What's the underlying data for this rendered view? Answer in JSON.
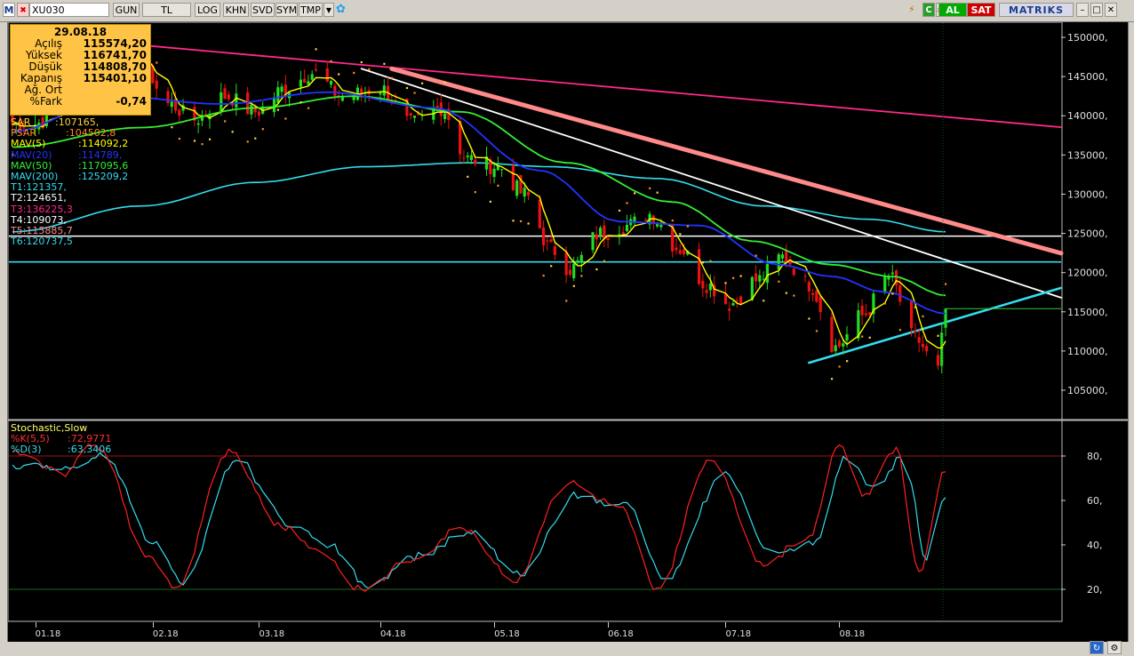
{
  "toolbar": {
    "logo": "M",
    "symbol": "XU030",
    "buttons": [
      "GUN",
      "TL",
      "LOG",
      "KHN",
      "SVD",
      "SYM",
      "TMP"
    ],
    "al": "AL",
    "sat": "SAT",
    "brand": "MATRIKS",
    "colors": {
      "al": "#00aa00",
      "sat": "#cc0000"
    }
  },
  "info": {
    "date": "29.08.18",
    "rows": [
      {
        "label": "Açılış",
        "value": "115574,20"
      },
      {
        "label": "Yüksek",
        "value": "116741,70"
      },
      {
        "label": "Düşük",
        "value": "114808,70"
      },
      {
        "label": "Kapanış",
        "value": "115401,10"
      },
      {
        "label": "Ağ. Ort",
        "value": ""
      },
      {
        "label": "%Fark",
        "value": "-0,74"
      }
    ]
  },
  "legend": [
    {
      "name": "SAR",
      "value": ":107165,",
      "color": "#ffd23f"
    },
    {
      "name": "PSAR",
      "value": ":104502,8",
      "color": "#ff8c1a"
    },
    {
      "name": "MAV(5)",
      "value": ":114092,2",
      "color": "#ffff00"
    },
    {
      "name": "MAV(20)",
      "value": ":114789,",
      "color": "#2233ff"
    },
    {
      "name": "MAV(50)",
      "value": ":117095,6",
      "color": "#33ee33"
    },
    {
      "name": "MAV(200)",
      "value": ":125209,2",
      "color": "#33ddee"
    },
    {
      "name": "T1",
      "value": ":121357,",
      "color": "#33ddee"
    },
    {
      "name": "T2",
      "value": ":124651,",
      "color": "#ffffff"
    },
    {
      "name": "T3",
      "value": ":136225,3",
      "color": "#ff2a8a"
    },
    {
      "name": "T4",
      "value": ":109073,",
      "color": "#ffffff"
    },
    {
      "name": "T5",
      "value": ":115885,7",
      "color": "#ff8a8a"
    },
    {
      "name": "T6",
      "value": ":120737,5",
      "color": "#33ddee"
    }
  ],
  "stoch_legend": {
    "title": "Stochastic,Slow",
    "k": {
      "name": "%K(5,5)",
      "value": ":72,9771",
      "color": "#ff2020"
    },
    "d": {
      "name": "%D(3)",
      "value": ":63,3406",
      "color": "#33ddee"
    }
  },
  "chart_data": [
    {
      "type": "candlestick",
      "title": "XU030",
      "y_ticks": [
        "150000,",
        "145000,",
        "140000,",
        "135000,",
        "130000,",
        "125000,",
        "120000,",
        "115000,",
        "110000,",
        "105000,"
      ],
      "y_values": [
        150000,
        145000,
        140000,
        135000,
        130000,
        125000,
        120000,
        115000,
        110000,
        105000
      ],
      "x_ticks": [
        "01.18",
        "02.18",
        "03.18",
        "04.18",
        "05.18",
        "06.18",
        "07.18",
        "08.18"
      ],
      "last_close": 115401.1,
      "horizontal_lines": [
        {
          "name": "T2",
          "y": 124651,
          "color": "#ffffff"
        },
        {
          "name": "T1",
          "y": 121357,
          "color": "#33ddee"
        }
      ],
      "series_anchors": {
        "close": [
          [
            "2018-01-01",
            139000
          ],
          [
            "2018-01-10",
            142000
          ],
          [
            "2018-01-20",
            145500
          ],
          [
            "2018-01-29",
            147000
          ],
          [
            "2018-02-05",
            141500
          ],
          [
            "2018-02-12",
            139500
          ],
          [
            "2018-02-20",
            142500
          ],
          [
            "2018-02-28",
            140500
          ],
          [
            "2018-03-08",
            143500
          ],
          [
            "2018-03-15",
            145500
          ],
          [
            "2018-03-23",
            142500
          ],
          [
            "2018-04-02",
            143500
          ],
          [
            "2018-04-10",
            139000
          ],
          [
            "2018-04-18",
            141000
          ],
          [
            "2018-04-25",
            134500
          ],
          [
            "2018-05-03",
            133500
          ],
          [
            "2018-05-10",
            130000
          ],
          [
            "2018-05-17",
            123000
          ],
          [
            "2018-05-22",
            120500
          ],
          [
            "2018-05-30",
            125000
          ],
          [
            "2018-06-06",
            126000
          ],
          [
            "2018-06-12",
            127500
          ],
          [
            "2018-06-20",
            123000
          ],
          [
            "2018-06-27",
            118500
          ],
          [
            "2018-07-03",
            116000
          ],
          [
            "2018-07-10",
            119000
          ],
          [
            "2018-07-17",
            122000
          ],
          [
            "2018-07-24",
            118500
          ],
          [
            "2018-07-31",
            110500
          ],
          [
            "2018-08-07",
            114500
          ],
          [
            "2018-08-14",
            119500
          ],
          [
            "2018-08-21",
            111500
          ],
          [
            "2018-08-27",
            107500
          ],
          [
            "2018-08-29",
            115401
          ]
        ],
        "mav20": [
          [
            "2017-12-26",
            138000
          ],
          [
            "2018-01-22",
            142500
          ],
          [
            "2018-02-19",
            141500
          ],
          [
            "2018-03-19",
            143000
          ],
          [
            "2018-04-16",
            141000
          ],
          [
            "2018-05-14",
            133000
          ],
          [
            "2018-06-04",
            126500
          ],
          [
            "2018-06-25",
            126000
          ],
          [
            "2018-07-16",
            121000
          ],
          [
            "2018-07-30",
            119500
          ],
          [
            "2018-08-13",
            117500
          ],
          [
            "2018-08-29",
            114789
          ]
        ],
        "mav50": [
          [
            "2017-12-26",
            136000
          ],
          [
            "2018-01-29",
            138500
          ],
          [
            "2018-02-28",
            141000
          ],
          [
            "2018-03-26",
            142500
          ],
          [
            "2018-04-23",
            140500
          ],
          [
            "2018-05-21",
            134000
          ],
          [
            "2018-06-18",
            129000
          ],
          [
            "2018-07-09",
            124000
          ],
          [
            "2018-07-30",
            121000
          ],
          [
            "2018-08-15",
            119500
          ],
          [
            "2018-08-29",
            117096
          ]
        ],
        "mav200": [
          [
            "2017-12-26",
            125200
          ],
          [
            "2018-01-29",
            128500
          ],
          [
            "2018-02-28",
            131500
          ],
          [
            "2018-03-29",
            133500
          ],
          [
            "2018-04-26",
            134000
          ],
          [
            "2018-05-17",
            133500
          ],
          [
            "2018-06-14",
            132000
          ],
          [
            "2018-07-12",
            128500
          ],
          [
            "2018-08-09",
            126800
          ],
          [
            "2018-08-29",
            125209
          ]
        ],
        "trend_lines": [
          {
            "color": "#ff2a8a",
            "from": [
              "2018-01-29",
              149000
            ],
            "to": [
              "2018-12-31",
              134500
            ]
          },
          {
            "color": "#ff8a8a",
            "from": [
              "2018-04-05",
              146000
            ],
            "to": [
              "2018-12-31",
              110000
            ]
          },
          {
            "color": "#ffffff",
            "from": [
              "2018-03-28",
              146000
            ],
            "to": [
              "2018-12-31",
              102000
            ]
          },
          {
            "color": "#33ddee",
            "from": [
              "2018-07-24",
              108500
            ],
            "to": [
              "2018-12-31",
              131500
            ]
          }
        ]
      }
    },
    {
      "type": "line",
      "title": "Stochastic,Slow",
      "y_ticks": [
        "80,",
        "60,",
        "40,",
        "20,"
      ],
      "y_values": [
        80,
        60,
        40,
        20
      ],
      "reference_lines": [
        80,
        20
      ],
      "series": [
        {
          "name": "%K(5,5)",
          "last": 72.9771,
          "anchors": [
            [
              "2017-12-26",
              82
            ],
            [
              "2018-01-08",
              72
            ],
            [
              "2018-01-17",
              85
            ],
            [
              "2018-01-31",
              35
            ],
            [
              "2018-02-07",
              20
            ],
            [
              "2018-02-21",
              82
            ],
            [
              "2018-03-07",
              48
            ],
            [
              "2018-03-16",
              38
            ],
            [
              "2018-03-28",
              20
            ],
            [
              "2018-04-09",
              32
            ],
            [
              "2018-04-24",
              48
            ],
            [
              "2018-05-07",
              24
            ],
            [
              "2018-05-21",
              68
            ],
            [
              "2018-06-04",
              57
            ],
            [
              "2018-06-14",
              20
            ],
            [
              "2018-06-28",
              78
            ],
            [
              "2018-07-12",
              32
            ],
            [
              "2018-07-24",
              44
            ],
            [
              "2018-08-01",
              85
            ],
            [
              "2018-08-08",
              62
            ],
            [
              "2018-08-16",
              84
            ],
            [
              "2018-08-22",
              28
            ],
            [
              "2018-08-29",
              72.98
            ]
          ]
        },
        {
          "name": "%D(3)",
          "last": 63.3406,
          "anchors": [
            [
              "2017-12-26",
              76
            ],
            [
              "2018-01-08",
              74
            ],
            [
              "2018-01-19",
              80
            ],
            [
              "2018-02-02",
              40
            ],
            [
              "2018-02-09",
              22
            ],
            [
              "2018-02-23",
              78
            ],
            [
              "2018-03-09",
              50
            ],
            [
              "2018-03-19",
              40
            ],
            [
              "2018-03-30",
              22
            ],
            [
              "2018-04-11",
              35
            ],
            [
              "2018-04-26",
              45
            ],
            [
              "2018-05-09",
              26
            ],
            [
              "2018-05-23",
              62
            ],
            [
              "2018-06-06",
              58
            ],
            [
              "2018-06-16",
              24
            ],
            [
              "2018-07-02",
              72
            ],
            [
              "2018-07-14",
              36
            ],
            [
              "2018-07-26",
              42
            ],
            [
              "2018-08-03",
              80
            ],
            [
              "2018-08-10",
              66
            ],
            [
              "2018-08-18",
              80
            ],
            [
              "2018-08-24",
              34
            ],
            [
              "2018-08-29",
              63.34
            ]
          ]
        }
      ]
    }
  ]
}
